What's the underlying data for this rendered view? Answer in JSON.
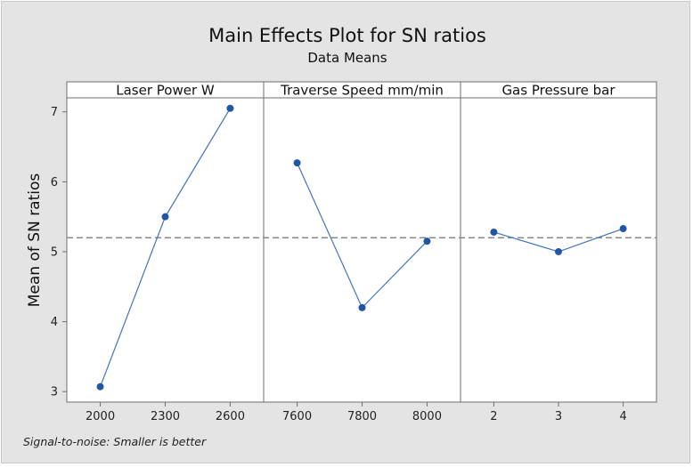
{
  "chart_data": {
    "type": "line",
    "title": "Main Effects Plot for SN ratios",
    "subtitle": "Data Means",
    "ylabel": "Mean of SN ratios",
    "ylim": [
      2.85,
      7.2
    ],
    "yticks": [
      3,
      4,
      5,
      6,
      7
    ],
    "mean_reference": 5.2,
    "footnote": "Signal-to-noise: Smaller is better",
    "line_color": "#3f74c4",
    "marker_color": "#1f56a8",
    "reference_color": "#888888",
    "panels": [
      {
        "name": "Laser Power W",
        "categories": [
          "2000",
          "2300",
          "2600"
        ],
        "values": [
          3.07,
          5.5,
          7.05
        ]
      },
      {
        "name": "Traverse Speed mm/min",
        "categories": [
          "7600",
          "7800",
          "8000"
        ],
        "values": [
          6.27,
          4.2,
          5.15
        ]
      },
      {
        "name": "Gas Pressure bar",
        "categories": [
          "2",
          "3",
          "4"
        ],
        "values": [
          5.28,
          5.0,
          5.33
        ]
      }
    ]
  }
}
